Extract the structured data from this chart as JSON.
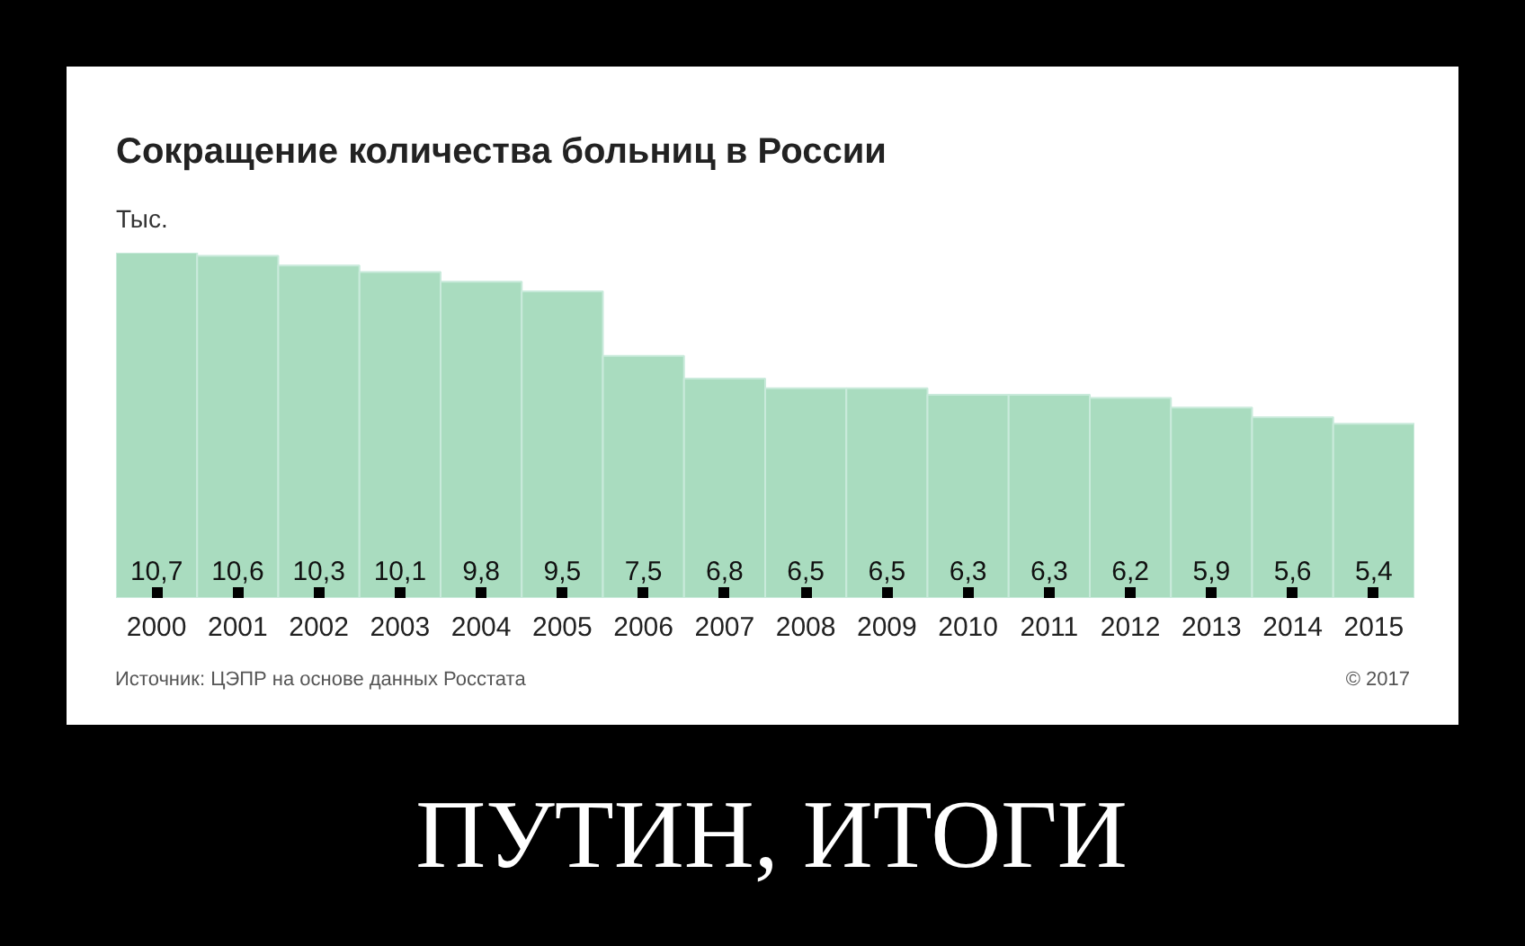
{
  "chart_data": {
    "type": "bar",
    "title": "Сокращение количества больниц в России",
    "ylabel": "Тыс.",
    "categories": [
      "2000",
      "2001",
      "2002",
      "2003",
      "2004",
      "2005",
      "2006",
      "2007",
      "2008",
      "2009",
      "2010",
      "2011",
      "2012",
      "2013",
      "2014",
      "2015"
    ],
    "values": [
      10.7,
      10.6,
      10.3,
      10.1,
      9.8,
      9.5,
      7.5,
      6.8,
      6.5,
      6.5,
      6.3,
      6.3,
      6.2,
      5.9,
      5.6,
      5.4
    ],
    "value_labels": [
      "10,7",
      "10,6",
      "10,3",
      "10,1",
      "9,8",
      "9,5",
      "7,5",
      "6,8",
      "6,5",
      "6,5",
      "6,3",
      "6,3",
      "6,2",
      "5,9",
      "5,6",
      "5,4"
    ],
    "color": "#a9dcbf",
    "grid": false,
    "annotations": [
      "Источник: ЦЭПР на основе данных Росстата",
      "© 2017",
      "ПУТИН, ИТОГИ"
    ]
  }
}
